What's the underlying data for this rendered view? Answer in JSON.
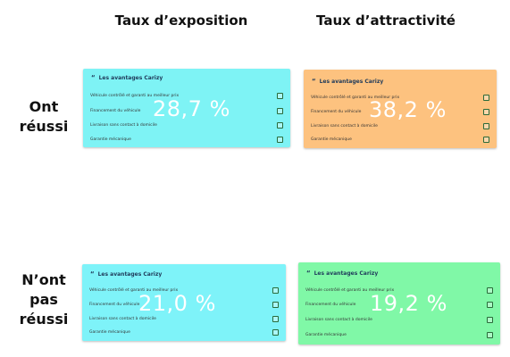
{
  "columns": {
    "exposure": "Taux d’exposition",
    "attractiveness": "Taux d’attractivité"
  },
  "rows": {
    "succeeded": [
      "Ont",
      "réussi"
    ],
    "not_succeeded": [
      "N’ont",
      "pas",
      "réussi"
    ]
  },
  "cards": {
    "tl": {
      "title": "Les avantages Carizy",
      "items": [
        "Véhicule contrôlé et garanti au meilleur prix",
        "Financement du véhicule",
        "Livraison sans contact à domicile",
        "Garantie mécanique"
      ],
      "percentage": "28,7 %",
      "bg": "#7ef3f5"
    },
    "tr": {
      "title": "Les avantages Carizy",
      "items": [
        "Véhicule contrôlé et garanti au meilleur prix",
        "Financement du véhicule",
        "Livraison sans contact à domicile",
        "Garantie mécanique"
      ],
      "percentage": "38,2 %",
      "bg": "#fdc27f"
    },
    "bl": {
      "title": "Les avantages Carizy",
      "items": [
        "Véhicule contrôlé et garanti au meilleur prix",
        "Financement du véhicule",
        "Livraison sans contact à domicile",
        "Garantie mécanique"
      ],
      "percentage": "21,0 %",
      "bg": "#7ef3f9"
    },
    "br": {
      "title": "Les avantages Carizy",
      "items": [
        "Véhicule contrôlé et garanti au meilleur prix",
        "Financement du véhicule",
        "Livraison sans contact à domicile",
        "Garantie mécanique"
      ],
      "percentage": "19,2 %",
      "bg": "#80f8a7"
    }
  }
}
